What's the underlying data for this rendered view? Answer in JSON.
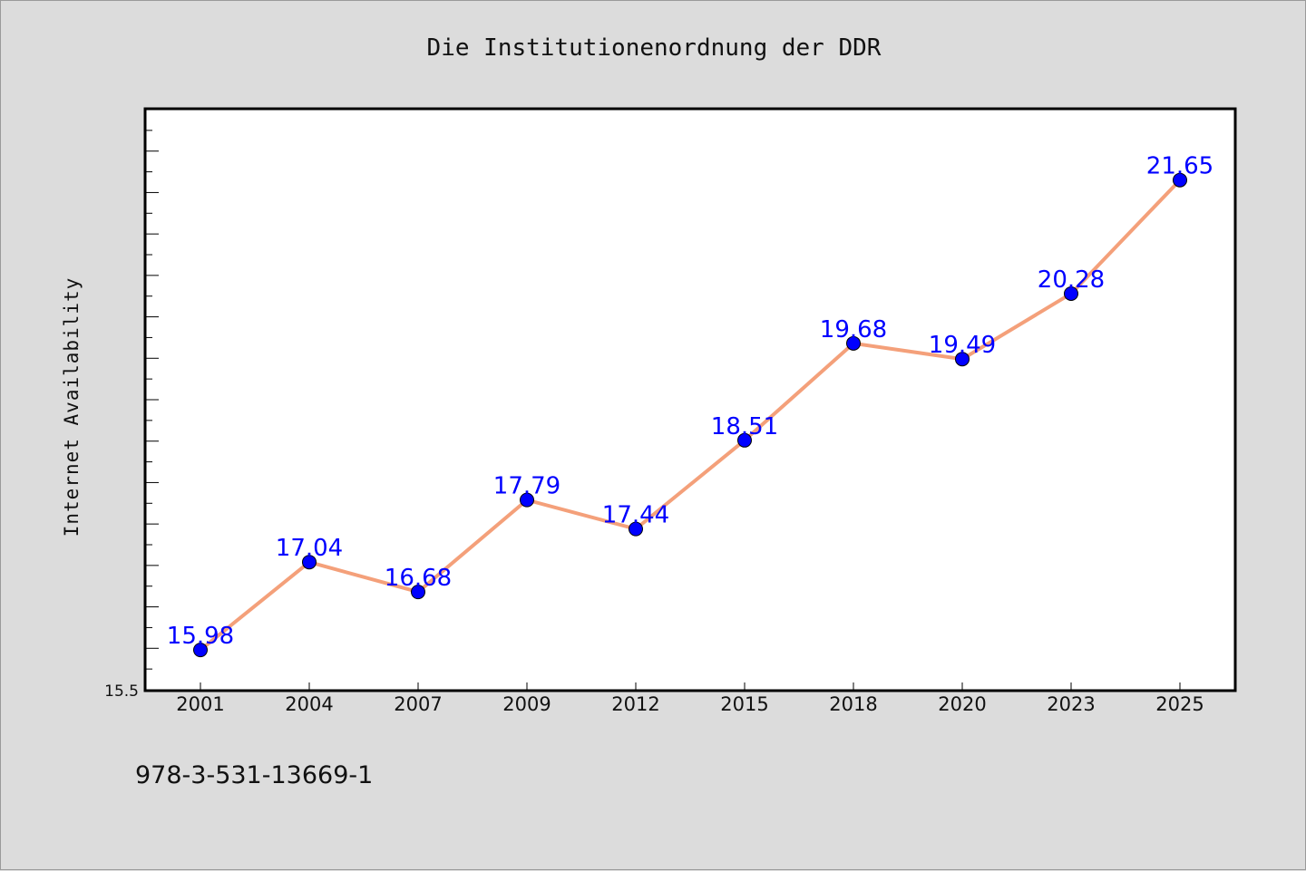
{
  "chart_data": {
    "type": "line",
    "title": "Die Institutionenordnung der DDR",
    "xlabel": "",
    "ylabel": "Internet Availability",
    "categories": [
      "2001",
      "2004",
      "2007",
      "2009",
      "2012",
      "2015",
      "2018",
      "2020",
      "2023",
      "2025"
    ],
    "series": [
      {
        "values": [
          15.98,
          17.04,
          16.68,
          17.79,
          17.44,
          18.51,
          19.68,
          19.49,
          20.28,
          21.65
        ]
      }
    ],
    "data_labels": [
      "15.98",
      "17.04",
      "16.68",
      "17.79",
      "17.44",
      "18.51",
      "19.68",
      "19.49",
      "20.28",
      "21.65"
    ],
    "ylim": [
      15.5,
      22.5
    ],
    "y_tick_labels": [
      "15.5"
    ],
    "grid": false,
    "line_color": "#f4a07a",
    "marker_color": "#0000ff",
    "label_color": "#0000ff"
  },
  "footer": {
    "isbn": "978-3-531-13669-1"
  }
}
